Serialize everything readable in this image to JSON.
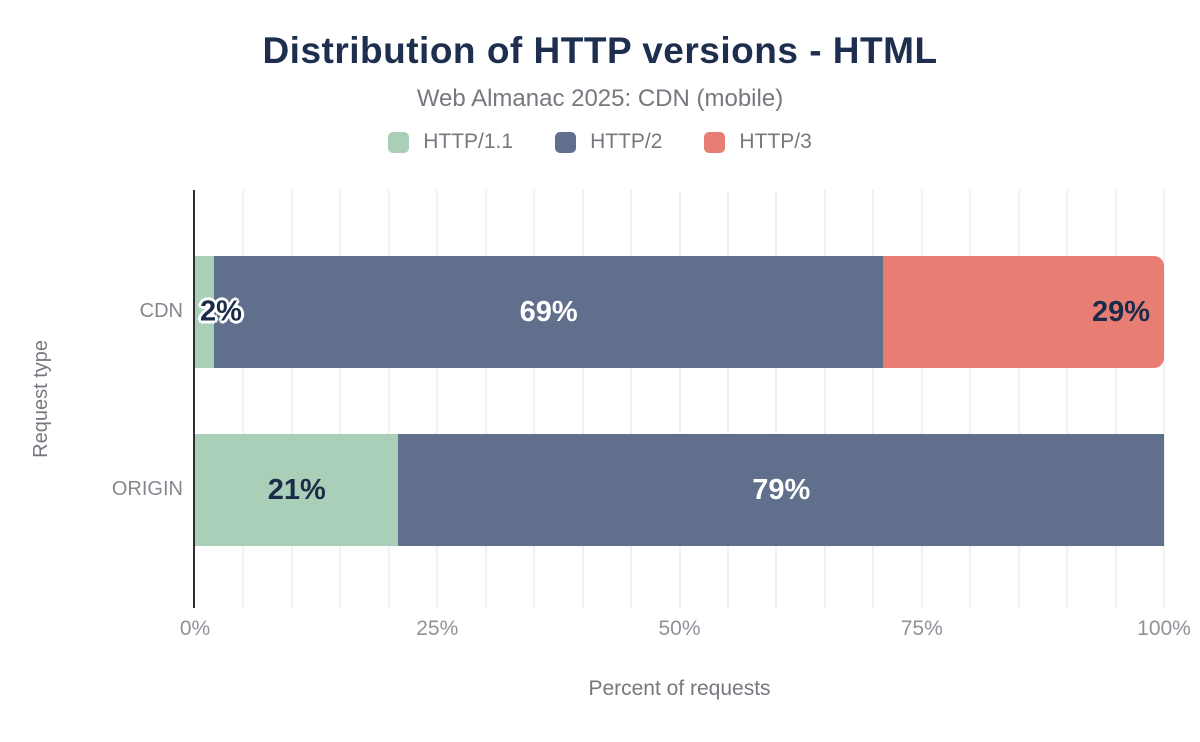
{
  "title": "Distribution of HTTP versions - HTML",
  "subtitle": "Web Almanac 2025: CDN (mobile)",
  "legend": [
    {
      "label": "HTTP/1.1",
      "color": "#aacfb9"
    },
    {
      "label": "HTTP/2",
      "color": "#5f6f8c"
    },
    {
      "label": "HTTP/3",
      "color": "#e87d73"
    }
  ],
  "chart_data": {
    "type": "bar",
    "orientation": "horizontal",
    "stacked": true,
    "title": "Distribution of HTTP versions - HTML",
    "subtitle": "Web Almanac 2025: CDN (mobile)",
    "categories": [
      "CDN",
      "ORIGIN"
    ],
    "series": [
      {
        "name": "HTTP/1.1",
        "color": "#aacfb9",
        "values": [
          2,
          21
        ]
      },
      {
        "name": "HTTP/2",
        "color": "#5f6f8c",
        "values": [
          69,
          79
        ]
      },
      {
        "name": "HTTP/3",
        "color": "#e87d73",
        "values": [
          29,
          0
        ]
      }
    ],
    "data_labels": [
      [
        "2%",
        "69%",
        "29%"
      ],
      [
        "21%",
        "79%",
        ""
      ]
    ],
    "xlabel": "Percent of requests",
    "ylabel": "Request type",
    "x_ticks": [
      "0%",
      "25%",
      "50%",
      "75%",
      "100%"
    ],
    "x_tick_positions": [
      0,
      25,
      50,
      75,
      100
    ],
    "xlim": [
      0,
      100
    ],
    "grid": "vertical, minor every 5%",
    "legend_position": "top center"
  },
  "colors": {
    "title_navy": "#1d2e4e",
    "dark_label_navy": "#1b2c49",
    "axis_line": "#2f2f2f",
    "gridline": "#f1f1f1",
    "muted_text": "#75787e",
    "tick_text": "#8f9399"
  }
}
